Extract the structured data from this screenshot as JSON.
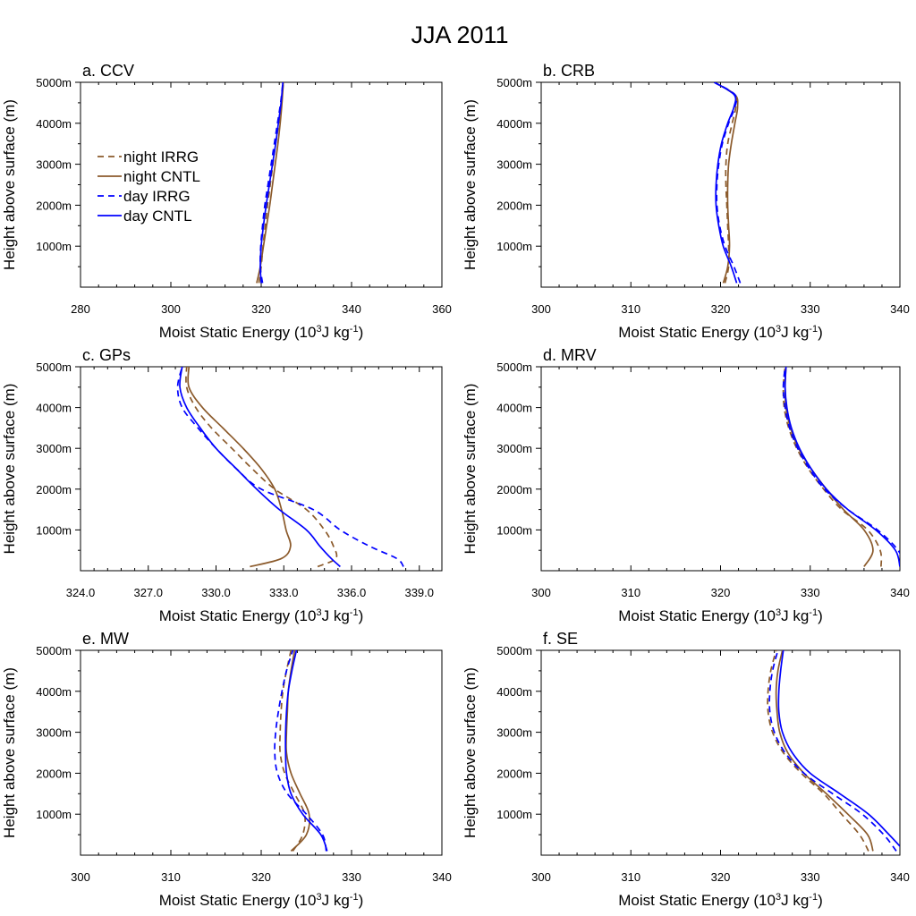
{
  "figure_title": "JJA 2011",
  "colors": {
    "night": "#8B5A2B",
    "day": "#0000FF",
    "axis": "#000000"
  },
  "legend": [
    {
      "label": "night IRRG",
      "color": "#8B5A2B",
      "dashed": true
    },
    {
      "label": "night CNTL",
      "color": "#8B5A2B",
      "dashed": false
    },
    {
      "label": "day IRRG",
      "color": "#0000FF",
      "dashed": true
    },
    {
      "label": "day CNTL",
      "color": "#0000FF",
      "dashed": false
    }
  ],
  "chart_data": [
    {
      "type": "line",
      "title": "a. CCV",
      "xlabel": "Moist Static Energy (10^3 J kg^-1)",
      "ylabel": "Height above surface (m)",
      "xlim": [
        280,
        360
      ],
      "ylim": [
        0,
        5000
      ],
      "xticks": [
        280,
        300,
        320,
        340,
        360
      ],
      "xticklabels": [
        "280",
        "300",
        "320",
        "340",
        "360"
      ],
      "yticks": [
        1000,
        2000,
        3000,
        4000,
        5000
      ],
      "yticklabels": [
        "1000m",
        "2000m",
        "3000m",
        "4000m",
        "5000m"
      ],
      "y": [
        100,
        500,
        1000,
        1500,
        2000,
        2500,
        3000,
        3500,
        4000,
        4500,
        5000
      ],
      "series": [
        {
          "name": "night IRRG",
          "values": [
            319.5,
            320.0,
            320.4,
            320.9,
            321.4,
            322.0,
            322.6,
            323.2,
            323.9,
            324.5,
            324.9
          ]
        },
        {
          "name": "night CNTL",
          "values": [
            319.0,
            319.8,
            320.5,
            321.2,
            321.9,
            322.5,
            323.1,
            323.7,
            324.2,
            324.6,
            324.9
          ]
        },
        {
          "name": "day IRRG",
          "values": [
            320.3,
            319.8,
            319.9,
            320.3,
            320.8,
            321.5,
            322.2,
            322.9,
            323.6,
            324.3,
            324.8
          ]
        },
        {
          "name": "day CNTL",
          "values": [
            320.0,
            319.8,
            320.0,
            320.5,
            321.1,
            321.8,
            322.5,
            323.2,
            323.8,
            324.4,
            324.8
          ]
        }
      ]
    },
    {
      "type": "line",
      "title": "b. CRB",
      "xlabel": "Moist Static Energy (10^3 J kg^-1)",
      "ylabel": "Height above surface (m)",
      "xlim": [
        300,
        340
      ],
      "ylim": [
        0,
        5000
      ],
      "xticks": [
        300,
        310,
        320,
        330,
        340
      ],
      "xticklabels": [
        "300",
        "310",
        "320",
        "330",
        "340"
      ],
      "yticks": [
        1000,
        2000,
        3000,
        4000,
        5000
      ],
      "yticklabels": [
        "1000m",
        "2000m",
        "3000m",
        "4000m",
        "5000m"
      ],
      "y": [
        100,
        500,
        1000,
        1500,
        2000,
        2500,
        3000,
        3500,
        4000,
        4400,
        4700,
        5000
      ],
      "series": [
        {
          "name": "night IRRG",
          "values": [
            320.5,
            320.9,
            320.9,
            320.8,
            320.7,
            320.6,
            320.6,
            320.8,
            321.3,
            321.7,
            321.5,
            319.3
          ]
        },
        {
          "name": "night CNTL",
          "values": [
            320.3,
            320.8,
            321.0,
            320.9,
            320.8,
            320.8,
            320.9,
            321.2,
            321.6,
            321.9,
            321.6,
            319.3
          ]
        },
        {
          "name": "day IRRG",
          "values": [
            322.2,
            321.5,
            320.5,
            319.9,
            319.6,
            319.6,
            319.8,
            320.2,
            320.9,
            321.6,
            321.6,
            319.3
          ]
        },
        {
          "name": "day CNTL",
          "values": [
            321.8,
            321.2,
            320.3,
            319.8,
            319.5,
            319.5,
            319.7,
            320.1,
            320.8,
            321.5,
            321.5,
            319.3
          ]
        }
      ]
    },
    {
      "type": "line",
      "title": "c. GPs",
      "xlabel": "Moist Static Energy (10^3 J kg^-1)",
      "ylabel": "Height above surface (m)",
      "xlim": [
        324,
        340
      ],
      "ylim": [
        0,
        5000
      ],
      "xticks": [
        324,
        327,
        330,
        333,
        336,
        339
      ],
      "xticklabels": [
        "324.0",
        "327.0",
        "330.0",
        "333.0",
        "336.0",
        "339.0"
      ],
      "yticks": [
        1000,
        2000,
        3000,
        4000,
        5000
      ],
      "yticklabels": [
        "1000m",
        "2000m",
        "3000m",
        "4000m",
        "5000m"
      ],
      "y": [
        100,
        300,
        600,
        1000,
        1500,
        2000,
        2500,
        3000,
        3500,
        4000,
        4500,
        5000
      ],
      "series": [
        {
          "name": "night IRRG",
          "values": [
            334.5,
            335.3,
            335.2,
            334.8,
            334.0,
            332.6,
            331.6,
            330.7,
            329.8,
            329.1,
            328.7,
            328.7
          ]
        },
        {
          "name": "night CNTL",
          "values": [
            331.5,
            332.9,
            333.3,
            333.1,
            332.9,
            332.6,
            332.0,
            331.2,
            330.3,
            329.4,
            328.8,
            328.8
          ]
        },
        {
          "name": "day IRRG",
          "values": [
            338.3,
            338.0,
            336.8,
            335.5,
            334.3,
            332.0,
            330.9,
            330.0,
            329.2,
            328.5,
            328.3,
            328.5
          ]
        },
        {
          "name": "day CNTL",
          "values": [
            335.5,
            335.1,
            334.6,
            334.0,
            332.8,
            331.8,
            330.9,
            330.0,
            329.3,
            328.7,
            328.4,
            328.5
          ]
        }
      ]
    },
    {
      "type": "line",
      "title": "d. MRV",
      "xlabel": "Moist Static Energy (10^3 J kg^-1)",
      "ylabel": "Height above surface (m)",
      "xlim": [
        300,
        340
      ],
      "ylim": [
        0,
        5000
      ],
      "xticks": [
        300,
        310,
        320,
        330,
        340
      ],
      "xticklabels": [
        "300",
        "310",
        "320",
        "330",
        "340"
      ],
      "yticks": [
        1000,
        2000,
        3000,
        4000,
        5000
      ],
      "yticklabels": [
        "1000m",
        "2000m",
        "3000m",
        "4000m",
        "5000m"
      ],
      "y": [
        100,
        500,
        1000,
        1500,
        2000,
        2500,
        3000,
        3500,
        4000,
        4500,
        5000
      ],
      "series": [
        {
          "name": "night IRRG",
          "values": [
            337.9,
            337.8,
            336.4,
            333.5,
            331.5,
            329.8,
            328.5,
            327.6,
            327.1,
            327.0,
            327.2
          ]
        },
        {
          "name": "night CNTL",
          "values": [
            336.0,
            337.0,
            336.0,
            333.7,
            331.8,
            330.1,
            328.7,
            327.8,
            327.3,
            327.2,
            327.3
          ]
        },
        {
          "name": "day IRRG",
          "values": [
            340.5,
            339.8,
            337.5,
            334.2,
            331.6,
            329.9,
            328.6,
            327.7,
            327.2,
            327.0,
            327.2
          ]
        },
        {
          "name": "day CNTL",
          "values": [
            340.0,
            339.5,
            337.3,
            334.2,
            331.8,
            330.1,
            328.8,
            327.9,
            327.4,
            327.2,
            327.3
          ]
        }
      ]
    },
    {
      "type": "line",
      "title": "e. MW",
      "xlabel": "Moist Static Energy (10^3 J kg^-1)",
      "ylabel": "Height above surface (m)",
      "xlim": [
        300,
        340
      ],
      "ylim": [
        0,
        5000
      ],
      "xticks": [
        300,
        310,
        320,
        330,
        340
      ],
      "xticklabels": [
        "300",
        "310",
        "320",
        "330",
        "340"
      ],
      "yticks": [
        1000,
        2000,
        3000,
        4000,
        5000
      ],
      "yticklabels": [
        "1000m",
        "2000m",
        "3000m",
        "4000m",
        "5000m"
      ],
      "y": [
        100,
        500,
        1000,
        1500,
        2000,
        2500,
        3000,
        3500,
        4000,
        4500,
        5000
      ],
      "series": [
        {
          "name": "night IRRG",
          "values": [
            323.5,
            324.6,
            324.8,
            323.7,
            322.6,
            322.1,
            322.1,
            322.2,
            322.4,
            322.8,
            323.3
          ]
        },
        {
          "name": "night CNTL",
          "values": [
            323.3,
            325.0,
            325.3,
            324.3,
            323.3,
            322.8,
            322.8,
            322.9,
            323.0,
            323.3,
            323.7
          ]
        },
        {
          "name": "day IRRG",
          "values": [
            327.2,
            326.8,
            325.0,
            322.9,
            321.8,
            321.5,
            321.6,
            321.9,
            322.3,
            322.8,
            323.5
          ]
        },
        {
          "name": "day CNTL",
          "values": [
            327.3,
            326.6,
            324.6,
            323.3,
            322.8,
            322.7,
            322.7,
            322.8,
            323.0,
            323.4,
            323.9
          ]
        }
      ]
    },
    {
      "type": "line",
      "title": "f. SE",
      "xlabel": "Moist Static Energy (10^3 J kg^-1)",
      "ylabel": "Height above surface (m)",
      "xlim": [
        300,
        340
      ],
      "ylim": [
        0,
        5000
      ],
      "xticks": [
        300,
        310,
        320,
        330,
        340
      ],
      "xticklabels": [
        "300",
        "310",
        "320",
        "330",
        "340"
      ],
      "yticks": [
        1000,
        2000,
        3000,
        4000,
        5000
      ],
      "yticklabels": [
        "1000m",
        "2000m",
        "3000m",
        "4000m",
        "5000m"
      ],
      "y": [
        100,
        500,
        1000,
        1500,
        2000,
        2500,
        3000,
        3500,
        4000,
        4500,
        5000
      ],
      "series": [
        {
          "name": "night IRRG",
          "values": [
            336.5,
            335.5,
            333.5,
            331.5,
            329.0,
            327.0,
            325.8,
            325.3,
            325.3,
            325.6,
            326.2
          ]
        },
        {
          "name": "night CNTL",
          "values": [
            337.0,
            336.4,
            334.2,
            331.8,
            329.3,
            327.5,
            326.6,
            326.3,
            326.2,
            326.4,
            326.9
          ]
        },
        {
          "name": "day IRRG",
          "values": [
            339.6,
            338.2,
            335.8,
            332.5,
            329.3,
            327.2,
            326.0,
            325.5,
            325.5,
            325.8,
            326.4
          ]
        },
        {
          "name": "day CNTL",
          "values": [
            340.5,
            338.8,
            336.5,
            333.3,
            330.0,
            328.0,
            326.9,
            326.5,
            326.5,
            326.7,
            327.0
          ]
        }
      ]
    }
  ]
}
